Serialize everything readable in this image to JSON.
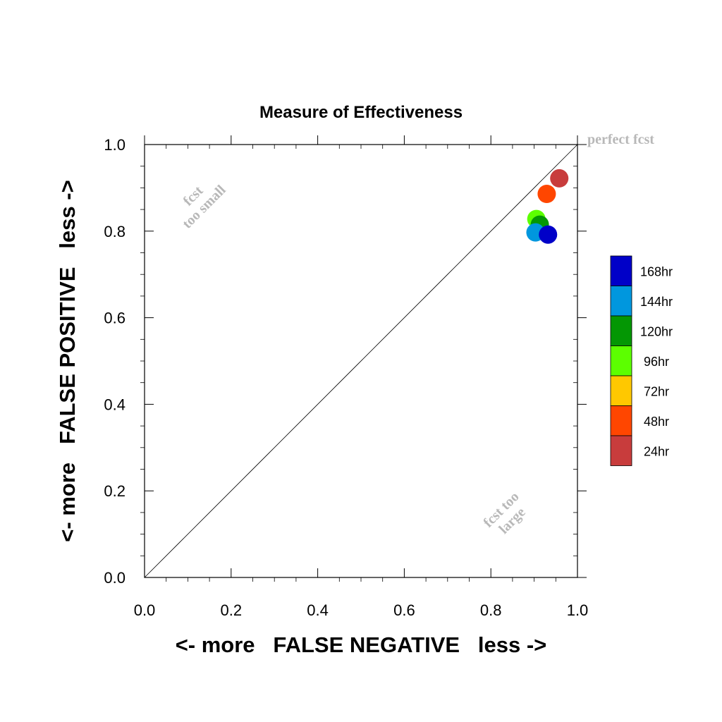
{
  "chart_data": {
    "type": "scatter",
    "title": "Measure of Effectiveness",
    "xlabel": "<- more   FALSE NEGATIVE   less ->",
    "ylabel": "<- more   FALSE POSITIVE   less ->",
    "xlim": [
      0.0,
      1.0
    ],
    "ylim": [
      0.0,
      1.0
    ],
    "x_tick_labels": [
      "0.0",
      "0.2",
      "0.4",
      "0.6",
      "0.8",
      "1.0"
    ],
    "y_tick_labels": [
      "0.0",
      "0.2",
      "0.4",
      "0.6",
      "0.8",
      "1.0"
    ],
    "grid": false,
    "diagonal_line": true,
    "annotations": {
      "perfect": "perfect fcst",
      "small_line1": "fcst",
      "small_line2": "too small",
      "large_line1": "fcst too",
      "large_line2": "large"
    },
    "legend_placement": "right",
    "legend": [
      {
        "label": "168hr",
        "color": "#0000c8"
      },
      {
        "label": "144hr",
        "color": "#0097de"
      },
      {
        "label": "120hr",
        "color": "#049704"
      },
      {
        "label": "96hr",
        "color": "#5cff00"
      },
      {
        "label": "72hr",
        "color": "#ffc800"
      },
      {
        "label": "48hr",
        "color": "#ff4600"
      },
      {
        "label": "24hr",
        "color": "#c83c3c"
      }
    ],
    "points": [
      {
        "series": "96hr",
        "x": 0.905,
        "y": 0.828,
        "color": "#5cff00"
      },
      {
        "series": "120hr",
        "x": 0.913,
        "y": 0.815,
        "color": "#049704"
      },
      {
        "series": "144hr",
        "x": 0.903,
        "y": 0.797,
        "color": "#0097de"
      },
      {
        "series": "168hr",
        "x": 0.932,
        "y": 0.792,
        "color": "#0000c8"
      },
      {
        "series": "48hr",
        "x": 0.929,
        "y": 0.886,
        "color": "#ff4600"
      },
      {
        "series": "24hr",
        "x": 0.958,
        "y": 0.922,
        "color": "#c83c3c"
      }
    ]
  }
}
